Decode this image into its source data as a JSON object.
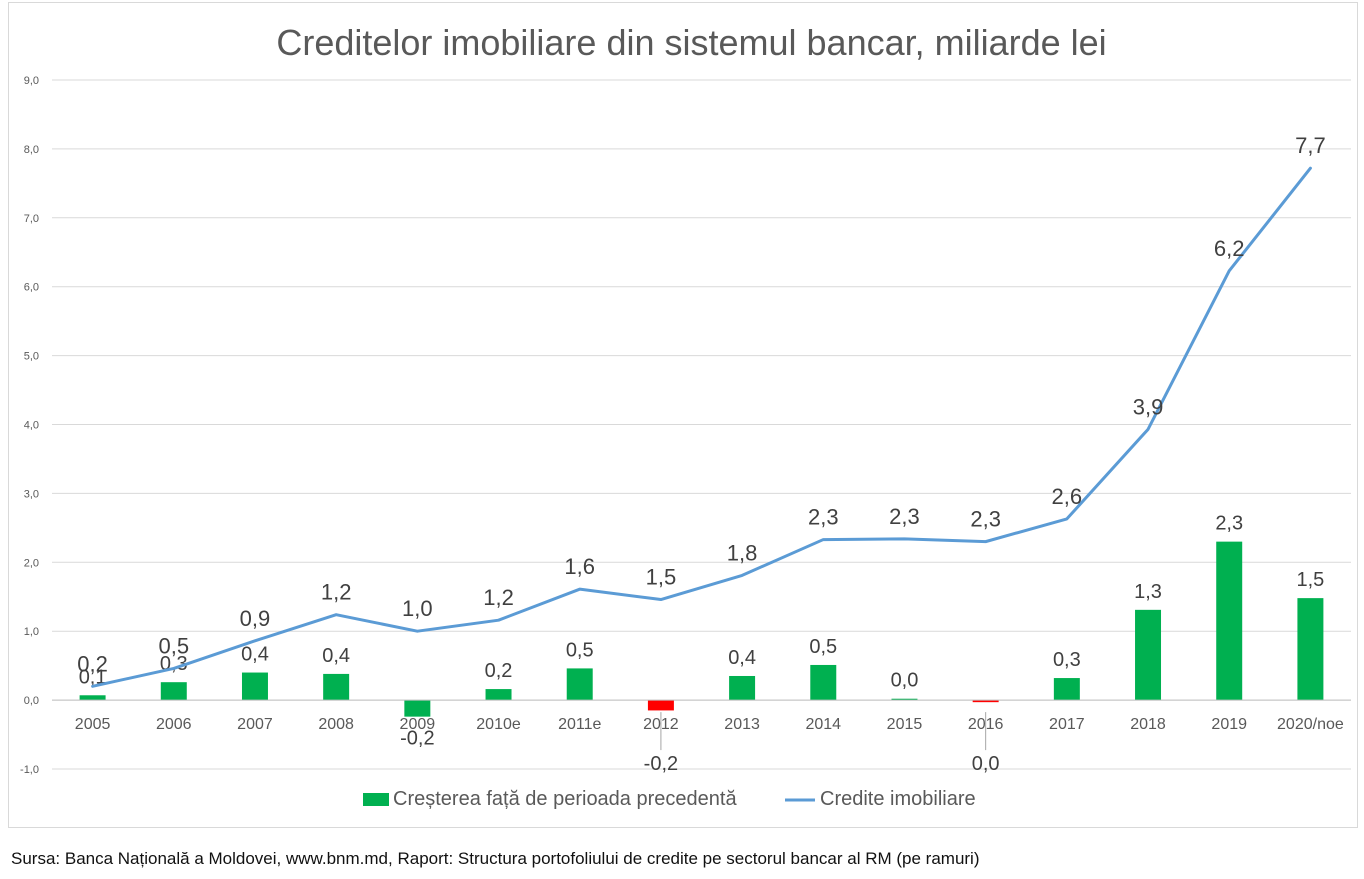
{
  "source_note": "Sursa: Banca Națională a Moldovei, www.bnm.md, Raport: Structura portofoliului de credite pe sectorul bancar al RM (pe ramuri)",
  "colors": {
    "bar_positive": "#00b050",
    "bar_negative": "#ff0000",
    "line": "#5b9bd5",
    "grid": "#d9d9d9",
    "axis_text": "#595959",
    "label_text": "#404040"
  },
  "chart_data": {
    "type": "bar",
    "title": "Creditelor imobiliare din sistemul bancar, miliarde lei",
    "categories": [
      "2005",
      "2006",
      "2007",
      "2008",
      "2009",
      "2010e",
      "2011e",
      "2012",
      "2013",
      "2014",
      "2015",
      "2016",
      "2017",
      "2018",
      "2019",
      "2020/noe"
    ],
    "ylim": [
      -1.0,
      9.0
    ],
    "yticks": [
      "-1,0",
      "0,0",
      "1,0",
      "2,0",
      "3,0",
      "4,0",
      "5,0",
      "6,0",
      "7,0",
      "8,0",
      "9,0"
    ],
    "grid": true,
    "legend_position": "bottom",
    "series": [
      {
        "name": "Creșterea față de perioada precedentă",
        "type": "bar",
        "values": [
          0.07,
          0.26,
          0.4,
          0.38,
          -0.24,
          0.16,
          0.46,
          -0.15,
          0.35,
          0.51,
          0.02,
          -0.03,
          0.32,
          1.31,
          2.3,
          1.48
        ],
        "labels": [
          "0,1",
          "0,3",
          "0,4",
          "0,4",
          "-0,2",
          "0,2",
          "0,5",
          "-0,2",
          "0,4",
          "0,5",
          "0,0",
          "0,0",
          "0,3",
          "1,3",
          "2,3",
          "1,5"
        ],
        "negative_color_indices": [
          7,
          11
        ]
      },
      {
        "name": "Credite imobiliare",
        "type": "line",
        "values": [
          0.2,
          0.46,
          0.86,
          1.24,
          1.0,
          1.16,
          1.61,
          1.46,
          1.81,
          2.33,
          2.34,
          2.3,
          2.63,
          3.93,
          6.23,
          7.72
        ],
        "labels": [
          "0,2",
          "0,5",
          "0,9",
          "1,2",
          "1,0",
          "1,2",
          "1,6",
          "1,5",
          "1,8",
          "2,3",
          "2,3",
          "2,3",
          "2,6",
          "3,9",
          "6,2",
          "7,7"
        ]
      }
    ]
  }
}
